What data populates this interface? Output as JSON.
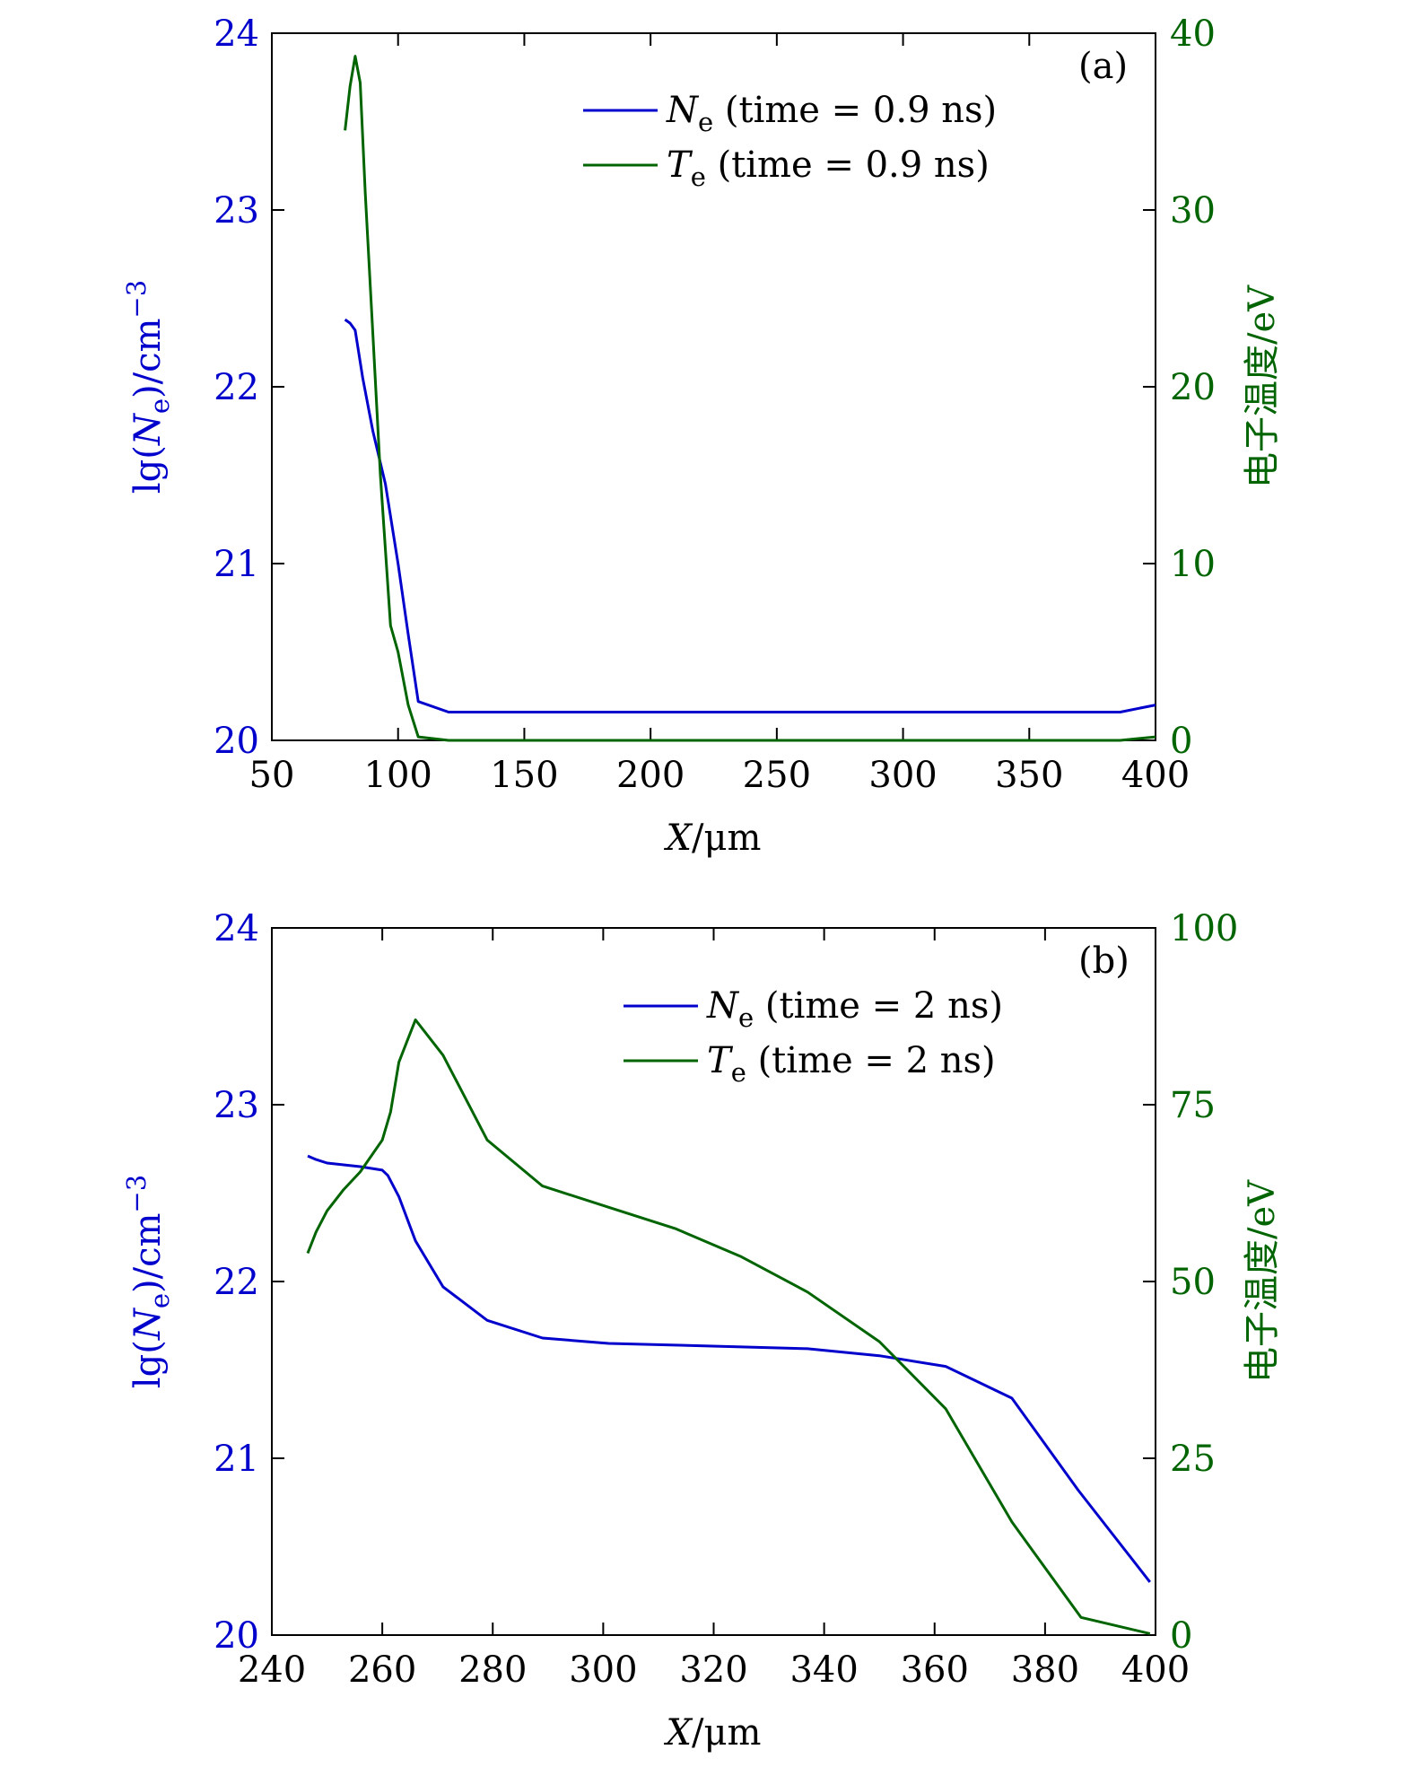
{
  "colors": {
    "ne": "#0000cc",
    "te": "#006400",
    "frame": "#000000"
  },
  "chart_data": [
    {
      "type": "line",
      "panel_label": "(a)",
      "xlabel": "X/μm",
      "ylabel_left": "lg(Ne)/cm−3",
      "ylabel_right": "电子温度/eV",
      "xlim": [
        50,
        400
      ],
      "ylim_left": [
        20,
        24
      ],
      "ylim_right": [
        0,
        40
      ],
      "xticks": [
        50,
        100,
        150,
        200,
        250,
        300,
        350,
        400
      ],
      "yticks_left": [
        20,
        21,
        22,
        23,
        24
      ],
      "yticks_right": [
        0,
        10,
        20,
        30,
        40
      ],
      "legend_position": "top-right",
      "series": [
        {
          "name": "Ne (time = 0.9 ns)",
          "axis": "left",
          "color_key": "ne",
          "x": [
            79,
            81,
            83,
            86,
            90,
            95,
            100,
            104,
            108,
            120,
            150,
            200,
            250,
            300,
            350,
            386,
            400
          ],
          "y": [
            22.38,
            22.36,
            22.32,
            22.05,
            21.75,
            21.45,
            21.0,
            20.6,
            20.22,
            20.16,
            20.16,
            20.16,
            20.16,
            20.16,
            20.16,
            20.16,
            20.2
          ]
        },
        {
          "name": "Te (time = 0.9 ns)",
          "axis": "right",
          "color_key": "te",
          "x": [
            79,
            81,
            83,
            85,
            87,
            90,
            93,
            97,
            100,
            104,
            108,
            120,
            200,
            300,
            386,
            400
          ],
          "y": [
            34.5,
            37.0,
            38.7,
            37.2,
            31.0,
            23.0,
            15.0,
            6.5,
            5.0,
            2.0,
            0.2,
            0.0,
            0.0,
            0.0,
            0.0,
            0.2
          ]
        }
      ]
    },
    {
      "type": "line",
      "panel_label": "(b)",
      "xlabel": "X/μm",
      "ylabel_left": "lg(Ne)/cm−3",
      "ylabel_right": "电子温度/eV",
      "xlim": [
        240,
        400
      ],
      "ylim_left": [
        20,
        24
      ],
      "ylim_right": [
        0,
        100
      ],
      "xticks": [
        240,
        260,
        280,
        300,
        320,
        340,
        360,
        380,
        400
      ],
      "yticks_left": [
        20,
        21,
        22,
        23,
        24
      ],
      "yticks_right": [
        0,
        25,
        50,
        75,
        100
      ],
      "legend_position": "top-right",
      "series": [
        {
          "name": "Ne (time = 2 ns)",
          "axis": "left",
          "color_key": "ne",
          "x": [
            246.5,
            248,
            250,
            253,
            256,
            260,
            261,
            263,
            266,
            271,
            279,
            289,
            301,
            313,
            325,
            337,
            350,
            362,
            374,
            386,
            399
          ],
          "y": [
            22.71,
            22.69,
            22.67,
            22.66,
            22.65,
            22.63,
            22.6,
            22.48,
            22.23,
            21.97,
            21.78,
            21.68,
            21.65,
            21.64,
            21.63,
            21.62,
            21.58,
            21.52,
            21.34,
            20.82,
            20.3
          ]
        },
        {
          "name": "Te (time = 2 ns)",
          "axis": "right",
          "color_key": "te",
          "x": [
            246.5,
            248,
            250,
            253,
            256,
            260,
            261.5,
            263,
            264.5,
            266,
            271,
            279,
            289,
            301,
            313,
            325,
            337,
            350,
            362,
            374,
            386.5,
            399
          ],
          "y": [
            54,
            57,
            60,
            63,
            65.5,
            70,
            74,
            81,
            84,
            87,
            82,
            70,
            63.5,
            60.5,
            57.5,
            53.5,
            48.5,
            41.5,
            32,
            16,
            2.5,
            0.2
          ]
        }
      ]
    }
  ]
}
